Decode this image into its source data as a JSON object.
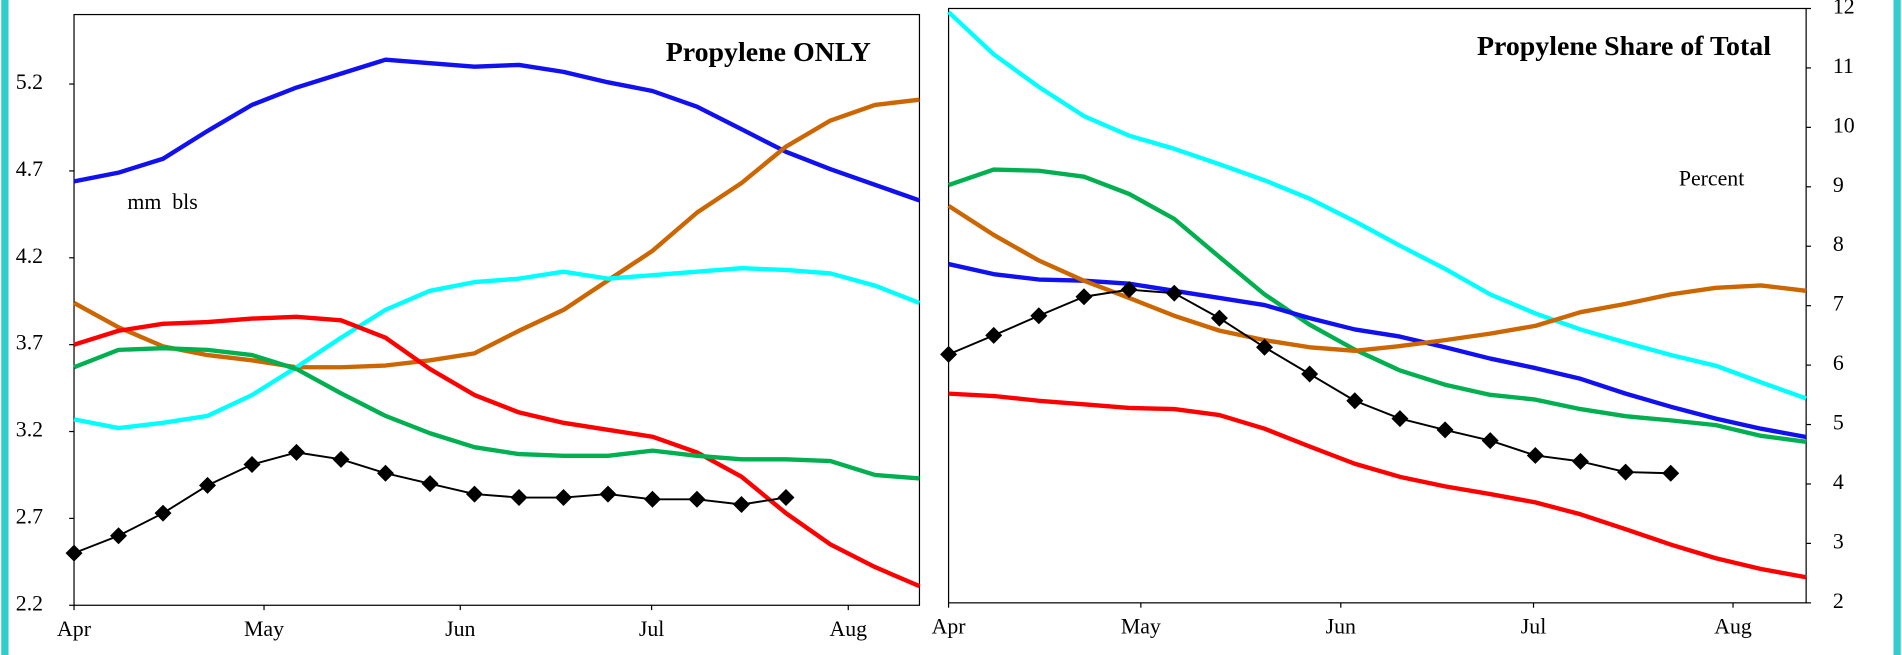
{
  "chart_data": [
    {
      "type": "line",
      "title": "Propylene ONLY",
      "annotation": "mm  bls",
      "y_axis_side": "left",
      "x": [
        0,
        1,
        2,
        3,
        4,
        5,
        6,
        7,
        8,
        9,
        10,
        11,
        12,
        13,
        14,
        15,
        16,
        17,
        18,
        19
      ],
      "xlim": [
        0,
        19
      ],
      "xticks": [
        {
          "value": 0,
          "label": "Apr"
        },
        {
          "value": 4.27,
          "label": "May"
        },
        {
          "value": 8.68,
          "label": "Jun"
        },
        {
          "value": 12.98,
          "label": "Jul"
        },
        {
          "value": 17.4,
          "label": "Aug"
        }
      ],
      "ylim": [
        2.2,
        5.6
      ],
      "yticks": [
        2.2,
        2.7,
        3.2,
        3.7,
        4.2,
        4.7,
        5.2
      ],
      "series": [
        {
          "color": "#1010f0",
          "values": [
            4.64,
            4.69,
            4.77,
            4.93,
            5.08,
            5.18,
            5.26,
            5.34,
            5.32,
            5.3,
            5.31,
            5.27,
            5.21,
            5.16,
            5.07,
            4.94,
            4.81,
            4.71,
            4.62,
            4.53
          ]
        },
        {
          "color": "#cc6600",
          "values": [
            3.94,
            3.8,
            3.69,
            3.64,
            3.61,
            3.57,
            3.57,
            3.58,
            3.61,
            3.65,
            3.78,
            3.9,
            4.07,
            4.24,
            4.46,
            4.63,
            4.84,
            4.99,
            5.08,
            5.11
          ]
        },
        {
          "color": "#00ffff",
          "values": [
            3.27,
            3.22,
            3.25,
            3.29,
            3.41,
            3.57,
            3.74,
            3.9,
            4.01,
            4.06,
            4.08,
            4.12,
            4.08,
            4.1,
            4.12,
            4.14,
            4.13,
            4.11,
            4.04,
            3.94
          ]
        },
        {
          "color": "#ff0000",
          "values": [
            3.7,
            3.78,
            3.82,
            3.83,
            3.85,
            3.86,
            3.84,
            3.74,
            3.56,
            3.41,
            3.31,
            3.25,
            3.21,
            3.17,
            3.08,
            2.94,
            2.73,
            2.55,
            2.42,
            2.31
          ]
        },
        {
          "color": "#00b050",
          "values": [
            3.57,
            3.67,
            3.68,
            3.67,
            3.64,
            3.56,
            3.42,
            3.29,
            3.19,
            3.11,
            3.07,
            3.06,
            3.06,
            3.09,
            3.06,
            3.04,
            3.04,
            3.03,
            2.95,
            2.93
          ]
        },
        {
          "color": "#000000",
          "marker": "diamond",
          "values": [
            2.5,
            2.6,
            2.73,
            2.89,
            3.01,
            3.08,
            3.04,
            2.96,
            2.9,
            2.84,
            2.82,
            2.82,
            2.84,
            2.81,
            2.81,
            2.78,
            2.82,
            null,
            null,
            null
          ]
        }
      ]
    },
    {
      "type": "line",
      "title": "Propylene Share of Total",
      "annotation": "Percent",
      "y_axis_side": "right",
      "x": [
        0,
        1,
        2,
        3,
        4,
        5,
        6,
        7,
        8,
        9,
        10,
        11,
        12,
        13,
        14,
        15,
        16,
        17,
        18,
        19
      ],
      "xlim": [
        0,
        19
      ],
      "xticks": [
        {
          "value": 0,
          "label": "Apr"
        },
        {
          "value": 4.26,
          "label": "May"
        },
        {
          "value": 8.69,
          "label": "Jun"
        },
        {
          "value": 12.96,
          "label": "Jul"
        },
        {
          "value": 17.38,
          "label": "Aug"
        }
      ],
      "ylim": [
        2,
        12
      ],
      "yticks": [
        2,
        3,
        4,
        5,
        6,
        7,
        8,
        9,
        10,
        11,
        12
      ],
      "series": [
        {
          "color": "#00ffff",
          "values": [
            11.94,
            11.23,
            10.68,
            10.19,
            9.86,
            9.64,
            9.38,
            9.11,
            8.8,
            8.42,
            8.01,
            7.62,
            7.19,
            6.87,
            6.6,
            6.38,
            6.17,
            5.99,
            5.71,
            5.44
          ]
        },
        {
          "color": "#00b050",
          "values": [
            9.03,
            9.29,
            9.27,
            9.17,
            8.88,
            8.46,
            7.82,
            7.19,
            6.68,
            6.26,
            5.91,
            5.67,
            5.5,
            5.42,
            5.26,
            5.14,
            5.07,
            4.99,
            4.81,
            4.71
          ]
        },
        {
          "color": "#1010f0",
          "values": [
            7.7,
            7.53,
            7.44,
            7.42,
            7.37,
            7.25,
            7.13,
            7.01,
            6.79,
            6.6,
            6.48,
            6.3,
            6.11,
            5.95,
            5.77,
            5.52,
            5.3,
            5.1,
            4.93,
            4.79
          ]
        },
        {
          "color": "#cc6600",
          "values": [
            8.68,
            8.19,
            7.76,
            7.42,
            7.13,
            6.83,
            6.58,
            6.42,
            6.3,
            6.24,
            6.32,
            6.42,
            6.53,
            6.66,
            6.89,
            7.03,
            7.19,
            7.3,
            7.34,
            7.25
          ]
        },
        {
          "color": "#ff0000",
          "values": [
            5.52,
            5.48,
            5.4,
            5.34,
            5.28,
            5.26,
            5.16,
            4.93,
            4.63,
            4.34,
            4.12,
            3.96,
            3.83,
            3.69,
            3.49,
            3.24,
            2.98,
            2.75,
            2.57,
            2.43
          ]
        },
        {
          "color": "#000000",
          "marker": "diamond",
          "values": [
            6.18,
            6.5,
            6.83,
            7.15,
            7.27,
            7.21,
            6.79,
            6.3,
            5.85,
            5.4,
            5.1,
            4.91,
            4.73,
            4.48,
            4.38,
            4.2,
            4.18,
            null,
            null,
            null
          ]
        }
      ]
    }
  ]
}
